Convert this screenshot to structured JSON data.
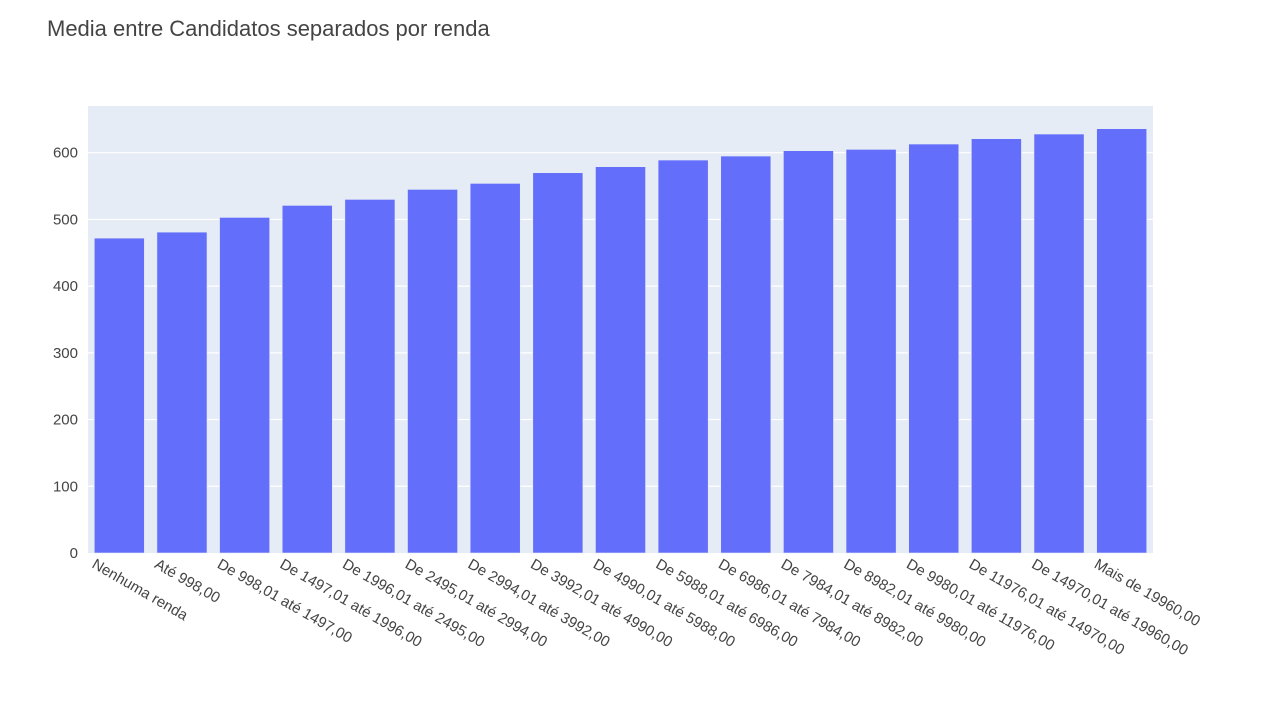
{
  "chart_data": {
    "type": "bar",
    "title": "Media entre Candidatos separados por renda",
    "xlabel": "",
    "ylabel": "",
    "ylim": [
      0,
      670
    ],
    "yticks": [
      0,
      100,
      200,
      300,
      400,
      500,
      600
    ],
    "grid": true,
    "bar_color": "#636efa",
    "plot_bg": "#e5ecf6",
    "categories": [
      "Nenhuma renda",
      "Até 998,00",
      "De 998,01 até 1497,00",
      "De 1497,01 até 1996,00",
      "De 1996,01 até 2495,00",
      "De 2495,01 até 2994,00",
      "De 2994,01 até 3992,00",
      "De 3992,01 até 4990,00",
      "De 4990,01 até 5988,00",
      "De 5988,01 até 6986,00",
      "De 6986,01 até 7984,00",
      "De 7984,01 até 8982,00",
      "De 8982,01 até 9980,00",
      "De 9980,01 até 11976,00",
      "De 11976,01 até 14970,00",
      "De 14970,01 até 19960,00",
      "Mais de 19960,00"
    ],
    "values": [
      472,
      481,
      503,
      521,
      530,
      545,
      554,
      570,
      579,
      589,
      595,
      603,
      605,
      613,
      621,
      628,
      636
    ]
  }
}
